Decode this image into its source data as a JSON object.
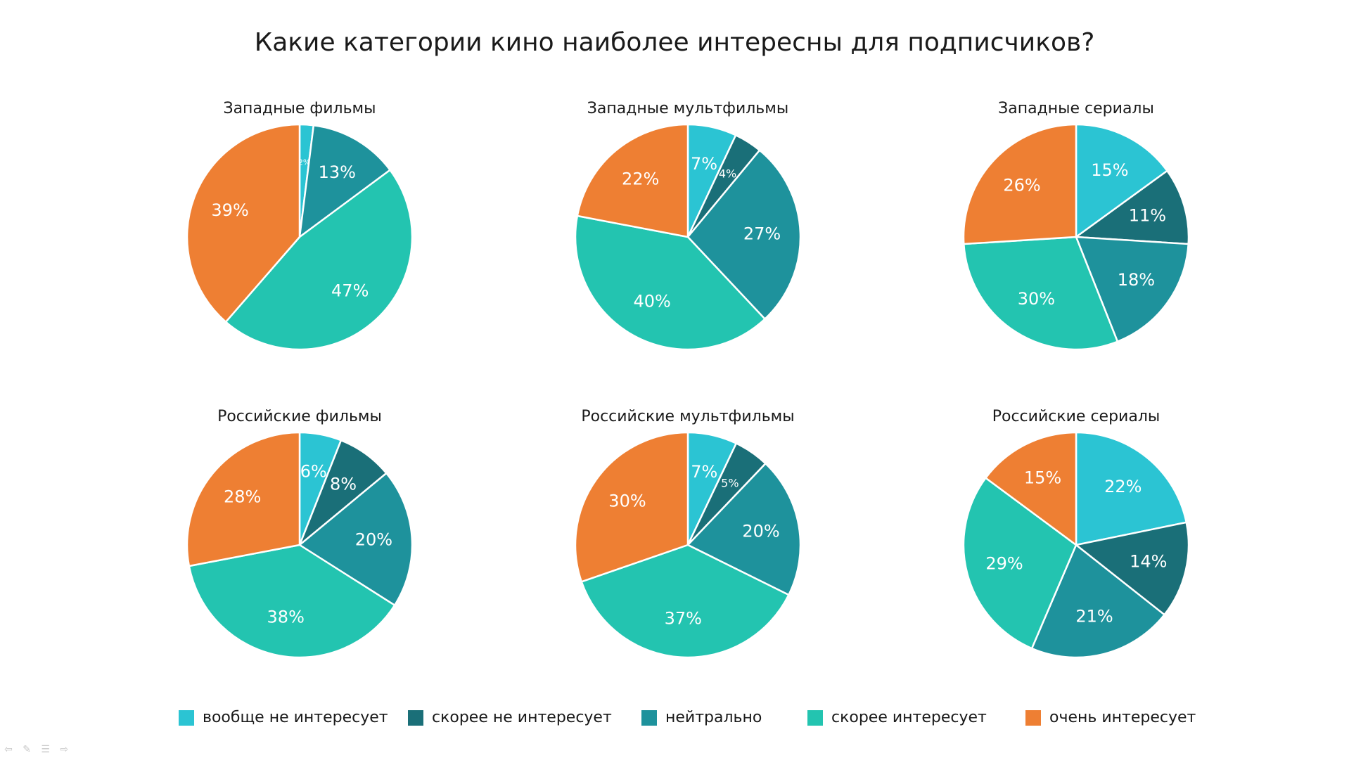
{
  "title": "Какие категории кино наиболее интересны для подписчиков?",
  "colors": {
    "not_at_all": "#2bc4d3",
    "rather_not": "#1a6f78",
    "neutral": "#1e929c",
    "rather_yes": "#23c4b0",
    "very": "#ee7f33"
  },
  "legend": [
    {
      "label": "вообще не интересует",
      "color_key": "not_at_all"
    },
    {
      "label": "скорее не интересует",
      "color_key": "rather_not"
    },
    {
      "label": "нейтрально",
      "color_key": "neutral"
    },
    {
      "label": "скорее интересует",
      "color_key": "rather_yes"
    },
    {
      "label": "очень интересует",
      "color_key": "very"
    }
  ],
  "chart_data": [
    {
      "type": "pie",
      "title": "Западные фильмы",
      "categories": [
        "вообще не интересует",
        "скорее не интересует",
        "нейтрально",
        "скорее интересует",
        "очень интересует"
      ],
      "values": [
        2,
        0,
        13,
        47,
        39
      ],
      "labels": [
        "2%",
        "",
        "13%",
        "47%",
        "39%"
      ]
    },
    {
      "type": "pie",
      "title": "Западные мультфильмы",
      "categories": [
        "вообще не интересует",
        "скорее не интересует",
        "нейтрально",
        "скорее интересует",
        "очень интересует"
      ],
      "values": [
        7,
        4,
        27,
        40,
        22
      ],
      "labels": [
        "7%",
        "4%",
        "27%",
        "40%",
        "22%"
      ]
    },
    {
      "type": "pie",
      "title": "Западные сериалы",
      "categories": [
        "вообще не интересует",
        "скорее не интересует",
        "нейтрально",
        "скорее интересует",
        "очень интересует"
      ],
      "values": [
        15,
        11,
        18,
        30,
        26
      ],
      "labels": [
        "15%",
        "11%",
        "18%",
        "30%",
        "26%"
      ]
    },
    {
      "type": "pie",
      "title": "Российские фильмы",
      "categories": [
        "вообще не интересует",
        "скорее не интересует",
        "нейтрально",
        "скорее интересует",
        "очень интересует"
      ],
      "values": [
        6,
        8,
        20,
        38,
        28
      ],
      "labels": [
        "6%",
        "8%",
        "20%",
        "38%",
        "28%"
      ]
    },
    {
      "type": "pie",
      "title": "Российские мультфильмы",
      "categories": [
        "вообще не интересует",
        "скорее не интересует",
        "нейтрально",
        "скорее интересует",
        "очень интересует"
      ],
      "values": [
        7,
        5,
        20,
        37,
        30
      ],
      "labels": [
        "7%",
        "5%",
        "20%",
        "37%",
        "30%"
      ]
    },
    {
      "type": "pie",
      "title": "Российские сериалы",
      "categories": [
        "вообще не интересует",
        "скорее не интересует",
        "нейтрально",
        "скорее интересует",
        "очень интересует"
      ],
      "values": [
        22,
        14,
        21,
        29,
        15
      ],
      "labels": [
        "22%",
        "14%",
        "21%",
        "29%",
        "15%"
      ]
    }
  ]
}
